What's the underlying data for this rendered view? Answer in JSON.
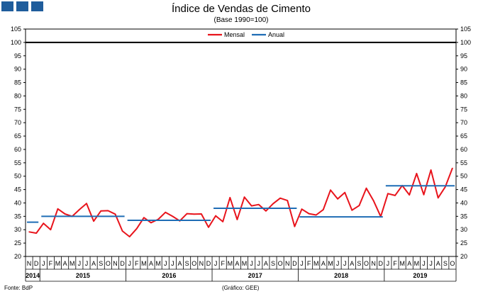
{
  "chart_data": {
    "type": "line",
    "title": "Índice de Vendas de Cimento",
    "subtitle": "(Base 1990=100)",
    "ylim": [
      20,
      105
    ],
    "yticks": [
      20,
      25,
      30,
      35,
      40,
      45,
      50,
      55,
      60,
      65,
      70,
      75,
      80,
      85,
      90,
      95,
      100,
      105
    ],
    "reference_line": 100,
    "grid": false,
    "legend_position": "top-center",
    "month_labels": [
      "N",
      "D",
      "J",
      "F",
      "M",
      "A",
      "M",
      "J",
      "J",
      "A",
      "S",
      "O",
      "N",
      "D",
      "J",
      "F",
      "M",
      "A",
      "M",
      "J",
      "J",
      "A",
      "S",
      "O",
      "N",
      "D",
      "J",
      "F",
      "M",
      "A",
      "M",
      "J",
      "J",
      "A",
      "S",
      "O",
      "N",
      "D",
      "J",
      "F",
      "M",
      "A",
      "M",
      "J",
      "J",
      "A",
      "S",
      "O",
      "N",
      "D",
      "J",
      "F",
      "M",
      "A",
      "M",
      "J",
      "J",
      "A",
      "S",
      "O"
    ],
    "year_labels": [
      "2014",
      "2015",
      "2016",
      "2017",
      "2018",
      "2019"
    ],
    "series": [
      {
        "name": "Mensal",
        "color": "#e8141c",
        "values": [
          29.2,
          28.7,
          32.4,
          30.0,
          37.8,
          35.9,
          35.0,
          37.5,
          39.8,
          33.2,
          37.0,
          37.1,
          35.8,
          29.5,
          27.4,
          30.4,
          34.5,
          32.6,
          33.9,
          36.5,
          35.0,
          33.3,
          36.0,
          35.8,
          35.9,
          30.9,
          35.2,
          33.0,
          42.0,
          33.8,
          42.2,
          38.9,
          39.4,
          37.0,
          39.7,
          41.8,
          40.9,
          31.2,
          37.7,
          36.0,
          35.5,
          37.5,
          44.8,
          41.5,
          43.9,
          37.3,
          39.0,
          45.5,
          40.8,
          34.9,
          43.5,
          42.8,
          46.5,
          43.0,
          51.0,
          43.1,
          52.3,
          41.9,
          46.0,
          53.0
        ]
      },
      {
        "name": "Anual",
        "color": "#1f6db5",
        "segments": [
          {
            "from_index": 0,
            "to_index": 1,
            "value": 32.8
          },
          {
            "from_index": 2,
            "to_index": 13,
            "value": 35.0
          },
          {
            "from_index": 14,
            "to_index": 25,
            "value": 33.5
          },
          {
            "from_index": 26,
            "to_index": 37,
            "value": 38.0
          },
          {
            "from_index": 38,
            "to_index": 49,
            "value": 34.8
          },
          {
            "from_index": 50,
            "to_index": 59,
            "value": 46.4
          }
        ]
      }
    ]
  },
  "footer": {
    "source": "Fonte: BdP",
    "credit": "(Gráfico: GEE)"
  }
}
